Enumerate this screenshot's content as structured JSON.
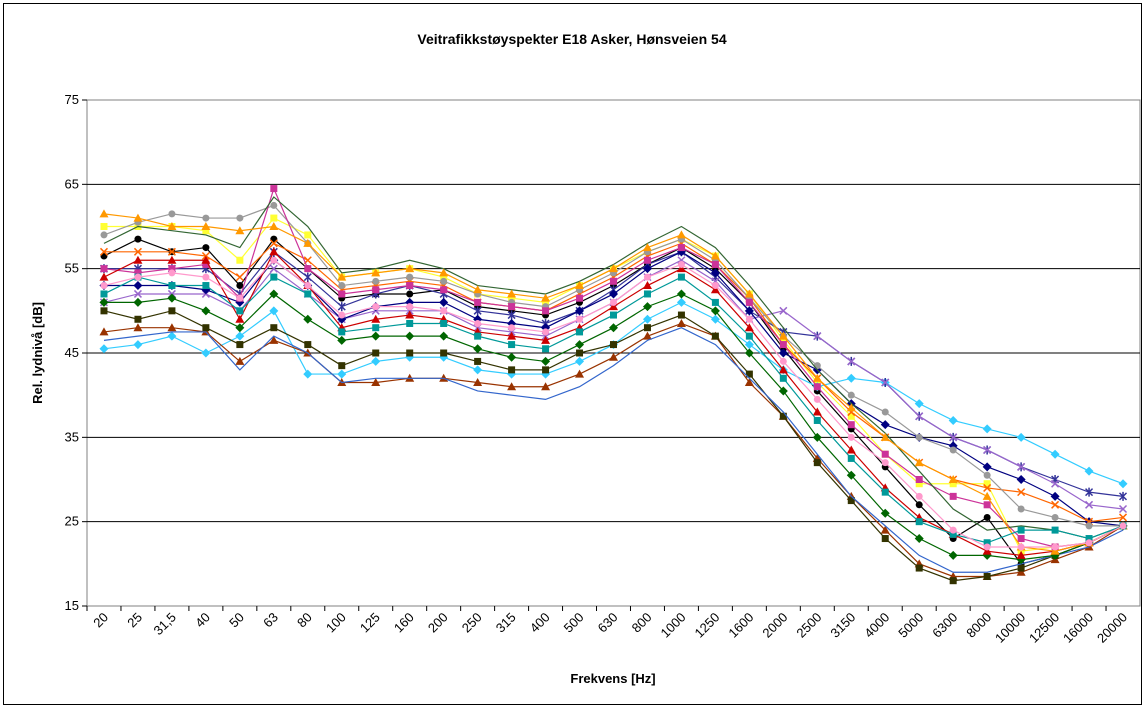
{
  "chart_data": {
    "type": "line",
    "title": "Veitrafikkstøyspekter E18 Asker, Hønsveien 54",
    "x_label": "Frekvens [Hz]",
    "y_label": "Rel. lydnivå [dB]",
    "categories": [
      "20",
      "25",
      "31,5",
      "40",
      "50",
      "63",
      "80",
      "100",
      "125",
      "160",
      "200",
      "250",
      "315",
      "400",
      "500",
      "630",
      "800",
      "1000",
      "1250",
      "1600",
      "2000",
      "2500",
      "3150",
      "4000",
      "5000",
      "6300",
      "8000",
      "10000",
      "12500",
      "16000",
      "20000"
    ],
    "ylim": [
      15,
      75
    ],
    "yticks": [
      15,
      25,
      35,
      45,
      55,
      65,
      75
    ],
    "grid": true,
    "series": [
      {
        "color": "#000000",
        "marker": "circle",
        "values": [
          56.5,
          58.5,
          57,
          57.5,
          53,
          58.5,
          55,
          51.5,
          52,
          52,
          52.5,
          50.5,
          50,
          49.5,
          51,
          53,
          55.5,
          57.5,
          55,
          51,
          45.5,
          40.5,
          36,
          31.5,
          27,
          23,
          25.5,
          20,
          21,
          22.5,
          24.5
        ]
      },
      {
        "color": "#ffff33",
        "marker": "square",
        "values": [
          60,
          60,
          60,
          59.5,
          56,
          61,
          59,
          54,
          54.5,
          55,
          54,
          52,
          51.5,
          51,
          53,
          55,
          57,
          58.5,
          56.5,
          52,
          46.5,
          41.5,
          37.5,
          33,
          29.5,
          29.5,
          29.5,
          21.5,
          22,
          22.5,
          24.5
        ]
      },
      {
        "color": "#33ccff",
        "marker": "diamond",
        "values": [
          45.5,
          46,
          47,
          45,
          47,
          50,
          42.5,
          42.5,
          44,
          44.5,
          44.5,
          43,
          42.5,
          42.5,
          44,
          46,
          49,
          51,
          49,
          46,
          43,
          41,
          42,
          41.5,
          39,
          37,
          36,
          35,
          33,
          31,
          29.5
        ]
      },
      {
        "color": "#333399",
        "marker": "star",
        "values": [
          55,
          55,
          55,
          55,
          52,
          57,
          54,
          50.5,
          52,
          53,
          52,
          50,
          49.5,
          48.5,
          50,
          52.5,
          55.5,
          57,
          54,
          50,
          47.5,
          47,
          44,
          41.5,
          37.5,
          35,
          33.5,
          31.5,
          30,
          28.5,
          28
        ]
      },
      {
        "color": "#9966cc",
        "marker": "x",
        "values": [
          51,
          52,
          52,
          52,
          50,
          55,
          52,
          49,
          50,
          50,
          50,
          48,
          47.5,
          47,
          49,
          51,
          54,
          56,
          53.5,
          49,
          50,
          47,
          44,
          41.5,
          37.5,
          35,
          33.5,
          31.5,
          29.5,
          27,
          26.5
        ]
      },
      {
        "color": "#000080",
        "marker": "diamond",
        "values": [
          53,
          53,
          53,
          52.5,
          51,
          56,
          53,
          49,
          50.5,
          51,
          51,
          49,
          48.5,
          48,
          50,
          52,
          55,
          57,
          54.5,
          50,
          45,
          43,
          39,
          36.5,
          35,
          34,
          31.5,
          30,
          28,
          25,
          24.5
        ]
      },
      {
        "color": "#ff6600",
        "marker": "x",
        "values": [
          57,
          57,
          57,
          56.5,
          54,
          58,
          56,
          52.5,
          53,
          53.5,
          53,
          51,
          50.5,
          50,
          52,
          54,
          56.5,
          58,
          55.5,
          51.5,
          46,
          42,
          38,
          35,
          32,
          30,
          29,
          28.5,
          27,
          25,
          25.5
        ]
      },
      {
        "color": "#999999",
        "marker": "circle",
        "values": [
          59,
          60.5,
          61.5,
          61,
          61,
          62.5,
          58,
          53,
          53.5,
          54,
          53.5,
          52,
          51,
          50.5,
          52.5,
          54.5,
          57,
          58.5,
          56,
          51.5,
          47,
          43.5,
          40,
          38,
          35,
          33.5,
          30.5,
          26.5,
          25.5,
          24.5,
          24.5
        ]
      },
      {
        "color": "#993300",
        "marker": "triangle",
        "values": [
          47.5,
          48,
          48,
          47.5,
          44,
          46.5,
          45,
          41.5,
          41.5,
          42,
          42,
          41.5,
          41,
          41,
          42.5,
          44.5,
          47,
          48.5,
          47,
          41.5,
          37.5,
          32.5,
          28,
          24,
          20,
          18.5,
          18.5,
          19,
          20.5,
          22,
          24.5
        ]
      },
      {
        "color": "#333300",
        "marker": "square",
        "values": [
          50,
          49,
          50,
          48,
          46,
          48,
          46,
          43.5,
          45,
          45,
          45,
          44,
          43,
          43,
          45,
          46,
          48,
          49.5,
          47,
          42.5,
          37.5,
          32,
          27.5,
          23,
          19.5,
          18,
          18.5,
          19.5,
          21,
          22.5,
          24.5
        ]
      },
      {
        "color": "#3366cc",
        "marker": "none",
        "values": [
          46.5,
          47,
          47.5,
          47.5,
          43,
          47,
          45,
          41.5,
          42,
          42,
          42,
          40.5,
          40,
          39.5,
          41,
          43.5,
          46.5,
          48,
          46,
          42,
          38,
          33,
          28,
          24.5,
          21,
          19,
          19,
          20,
          21,
          22,
          24
        ]
      },
      {
        "color": "#006600",
        "marker": "diamond",
        "values": [
          51,
          51,
          51.5,
          50,
          48,
          52,
          49,
          46.5,
          47,
          47,
          47,
          45.5,
          44.5,
          44,
          46,
          48,
          50.5,
          52,
          50,
          45,
          40.5,
          35,
          30.5,
          26,
          23,
          21,
          21,
          20.5,
          21,
          22.5,
          24.5
        ]
      },
      {
        "color": "#cc3399",
        "marker": "square",
        "values": [
          55,
          54.5,
          55,
          55.5,
          51.5,
          64.5,
          55,
          52,
          52.5,
          53,
          52.5,
          51,
          50.5,
          50,
          51.5,
          53.5,
          56,
          57.5,
          55.5,
          51,
          46,
          41,
          36.5,
          33,
          30,
          28,
          27,
          23,
          22,
          22.5,
          24.5
        ]
      },
      {
        "color": "#336633",
        "marker": "none",
        "values": [
          58,
          60,
          59.5,
          59,
          57.5,
          63.5,
          60,
          54.5,
          55,
          56,
          55,
          53,
          52.5,
          52,
          53.5,
          55.5,
          58,
          60,
          57.5,
          53,
          48,
          43,
          39,
          35.5,
          31,
          26.5,
          24,
          24.5,
          24,
          23,
          24.5
        ]
      },
      {
        "color": "#cc0000",
        "marker": "triangle",
        "values": [
          54,
          56,
          56,
          56,
          49,
          57,
          53,
          48,
          49,
          49.5,
          49,
          47.5,
          47,
          46.5,
          48,
          50.5,
          53,
          55,
          52.5,
          48,
          43,
          38,
          33.5,
          29,
          25.5,
          23.5,
          21.5,
          21,
          21.5,
          22.5,
          24.5
        ]
      },
      {
        "color": "#ff9900",
        "marker": "triangle",
        "values": [
          61.5,
          61,
          60,
          60,
          59.5,
          60,
          58,
          54,
          54.5,
          55,
          54.5,
          52.5,
          52,
          51.5,
          53,
          55,
          57.5,
          59,
          56.5,
          52,
          47,
          42,
          38.5,
          35,
          32,
          30,
          28,
          22,
          21.5,
          22.5,
          24.5
        ]
      },
      {
        "color": "#009999",
        "marker": "square",
        "values": [
          52,
          54,
          53,
          53,
          50,
          54,
          52,
          47.5,
          48,
          48.5,
          48.5,
          47,
          46,
          45.5,
          47.5,
          49.5,
          52,
          54,
          51,
          47,
          42,
          37,
          32.5,
          28.5,
          25,
          23.5,
          22.5,
          24,
          24,
          23,
          24.5
        ]
      },
      {
        "color": "#ff99cc",
        "marker": "circle",
        "values": [
          53,
          54,
          54.5,
          54,
          51.5,
          56,
          53,
          49.5,
          50.5,
          50.5,
          50,
          48.5,
          48,
          47.5,
          49,
          51,
          54,
          55.5,
          53,
          49,
          44,
          39.5,
          35,
          32,
          28,
          24,
          22,
          22,
          22,
          22.5,
          24.5
        ]
      }
    ]
  }
}
